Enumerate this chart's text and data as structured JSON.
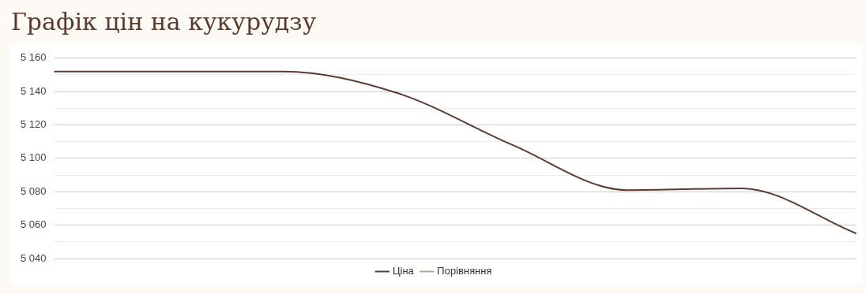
{
  "chart_data": {
    "type": "line",
    "title": "Графік цін на кукурудзу",
    "categories": [
      null,
      null,
      null,
      null,
      null,
      null,
      null,
      null
    ],
    "series": [
      {
        "name": "Ціна",
        "color": "#5e3a34",
        "values": [
          5152,
          5152,
          5152,
          5139,
          5108,
          5081,
          5082,
          5055
        ]
      },
      {
        "name": "Порівняння",
        "color": "#a3ad95",
        "values": [
          null,
          null,
          null,
          null,
          null,
          null,
          null,
          null
        ]
      }
    ],
    "ylim": [
      5040,
      5160
    ],
    "yticks": [
      5040,
      {
        "value": 5050,
        "label": null
      },
      5060,
      {
        "value": 5070,
        "label": null
      },
      5080,
      {
        "value": 5090,
        "label": null
      },
      5100,
      {
        "value": 5110,
        "label": null
      },
      5120,
      {
        "value": 5130,
        "label": null
      },
      5140,
      {
        "value": 5150,
        "label": null
      },
      5160
    ],
    "grid": "y",
    "legend": "bottom",
    "marker": "none",
    "line_style": "solid",
    "tick_labels": "y"
  }
}
